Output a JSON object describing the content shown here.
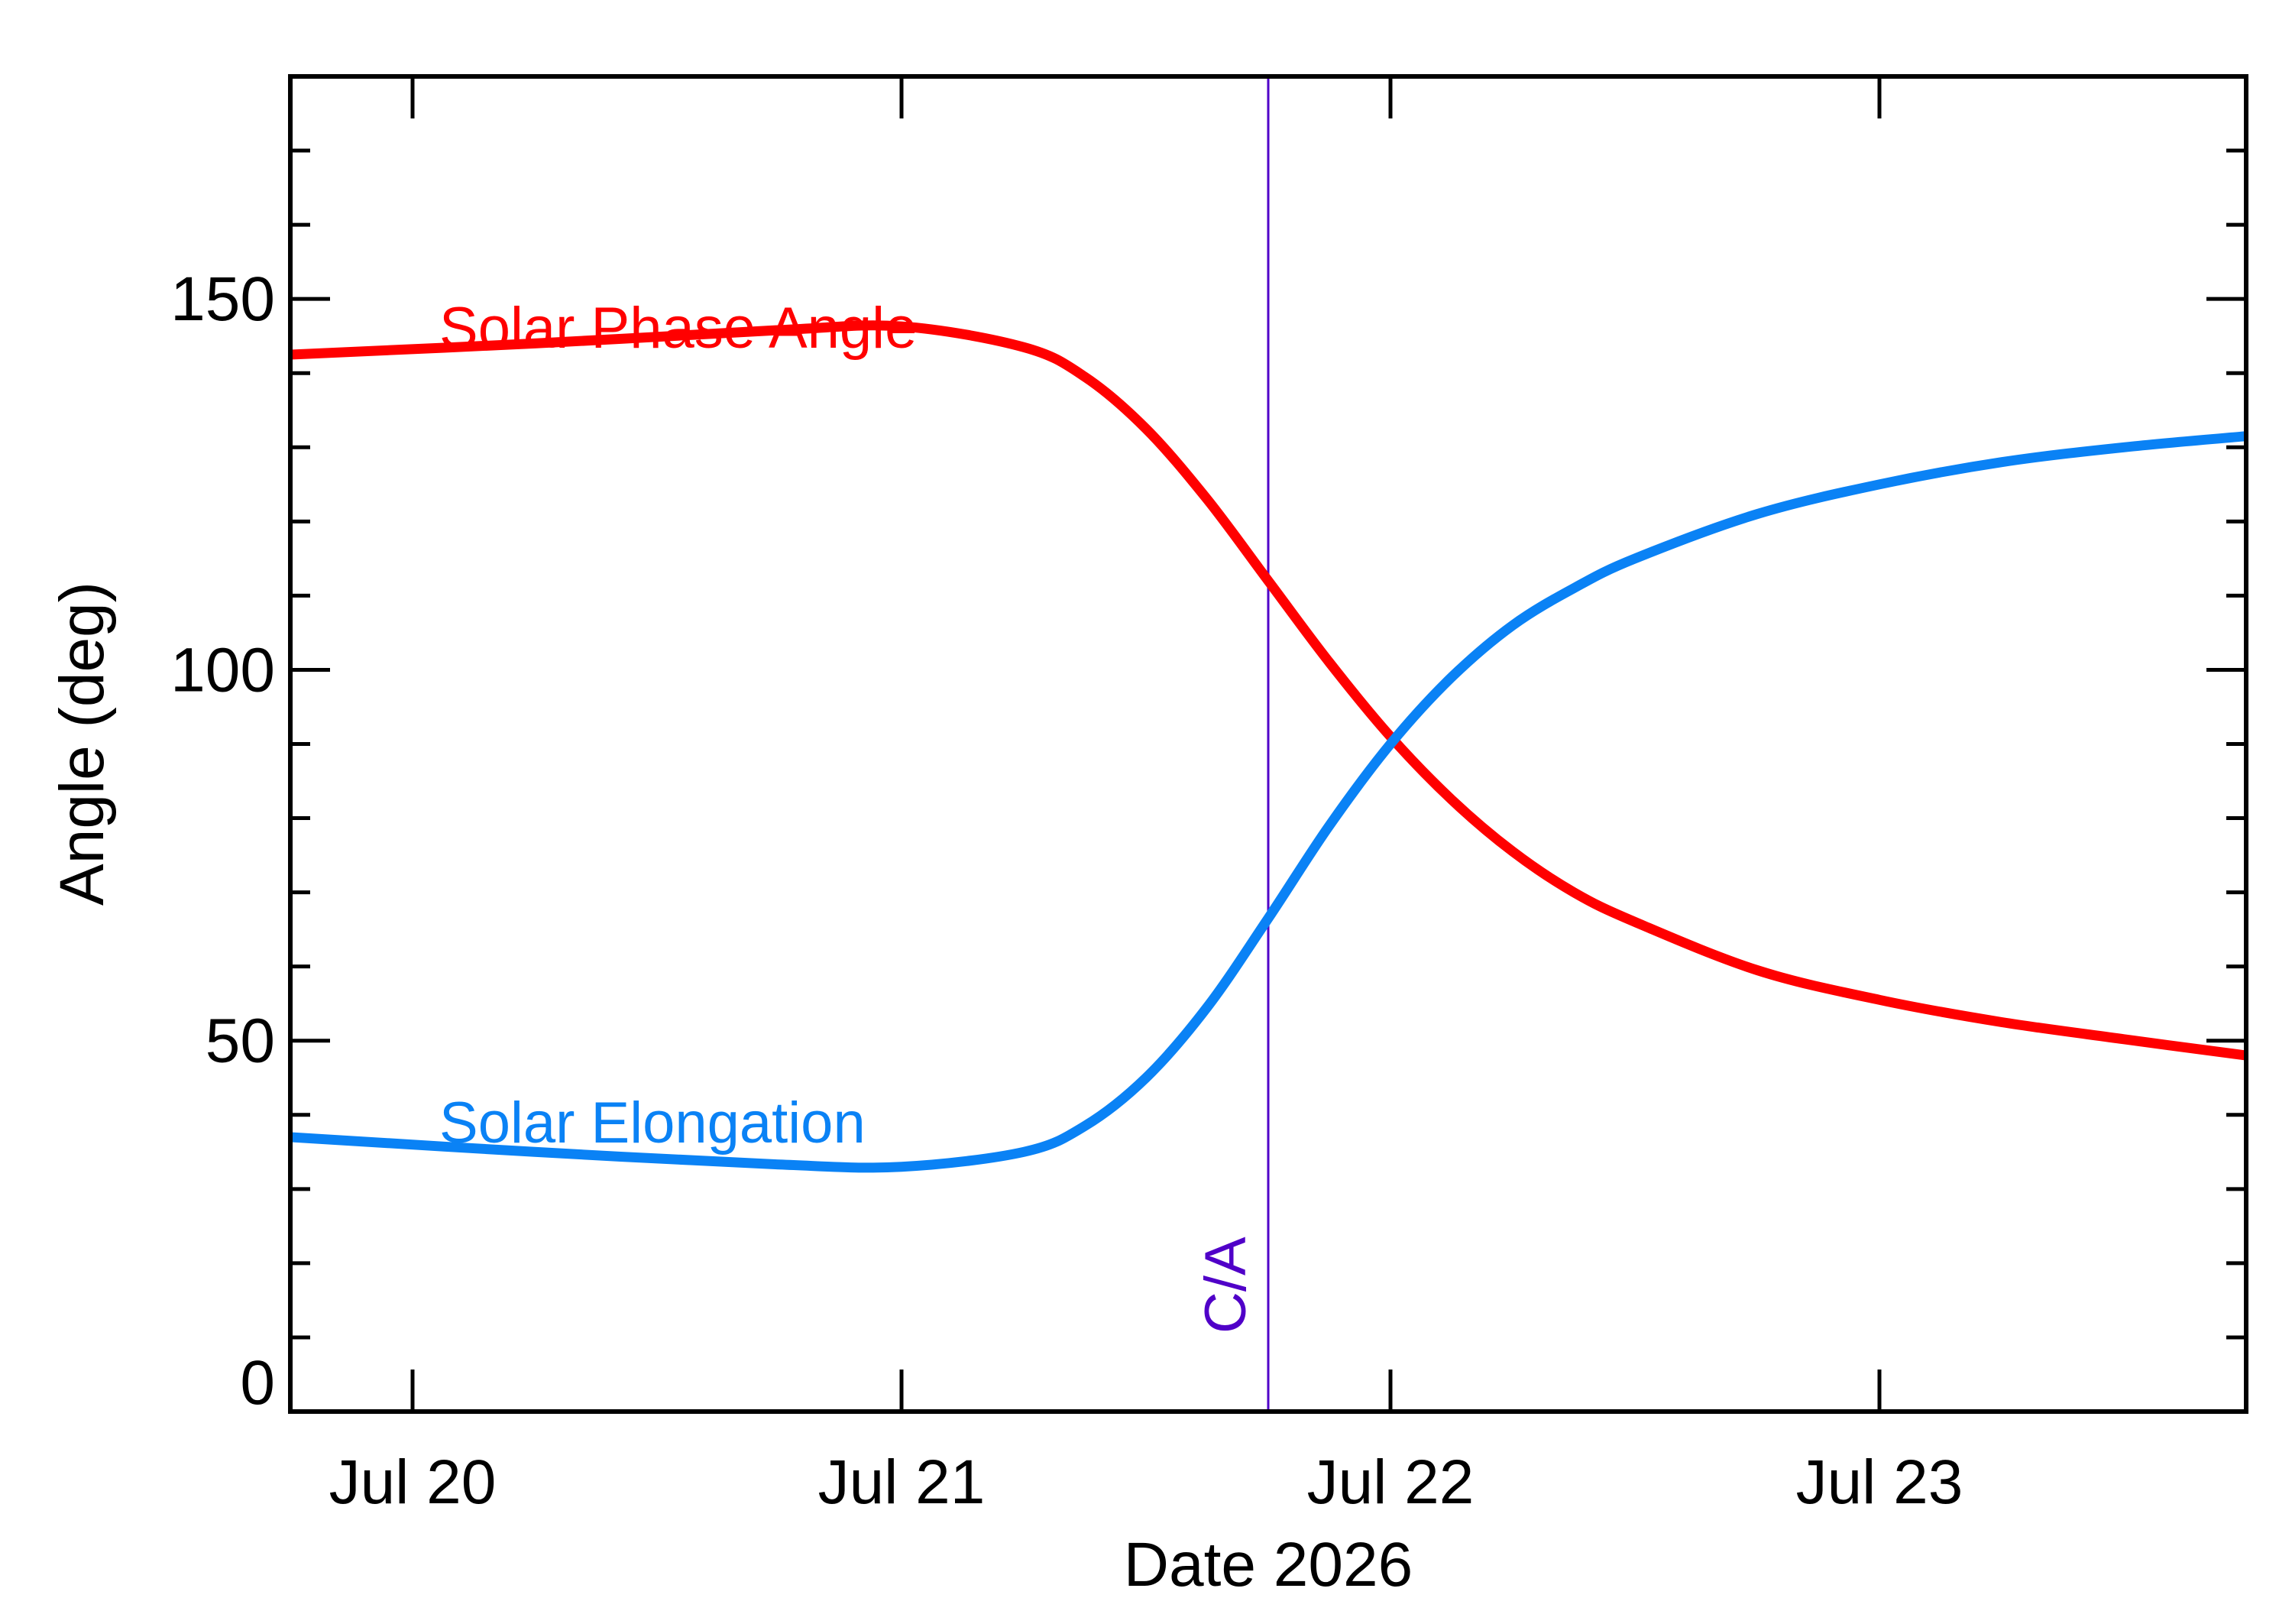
{
  "chart_data": {
    "type": "line",
    "xlabel": "Date 2026",
    "ylabel": "Angle (deg)",
    "x_type": "date",
    "xlim": [
      "2026-07-19 18:00",
      "2026-07-23 18:00"
    ],
    "ylim": [
      0,
      180
    ],
    "x_ticks": [
      {
        "label": "Jul 20",
        "value": "2026-07-20 00:00"
      },
      {
        "label": "Jul 21",
        "value": "2026-07-21 00:00"
      },
      {
        "label": "Jul 22",
        "value": "2026-07-22 00:00"
      },
      {
        "label": "Jul 23",
        "value": "2026-07-23 00:00"
      }
    ],
    "y_ticks": [
      0,
      50,
      100,
      150
    ],
    "y_minor_step": 10,
    "grid": false,
    "legend": "inline labels",
    "series": [
      {
        "name": "Solar Phase Angle",
        "color": "#ff0000",
        "x": [
          "2026-07-19 18:00",
          "2026-07-20 06:00",
          "2026-07-20 18:00",
          "2026-07-21 00:00",
          "2026-07-21 06:00",
          "2026-07-21 09:00",
          "2026-07-21 12:00",
          "2026-07-21 15:00",
          "2026-07-21 18:00",
          "2026-07-21 21:00",
          "2026-07-22 00:00",
          "2026-07-22 03:00",
          "2026-07-22 06:00",
          "2026-07-22 09:00",
          "2026-07-22 12:00",
          "2026-07-22 18:00",
          "2026-07-23 00:00",
          "2026-07-23 06:00",
          "2026-07-23 12:00",
          "2026-07-23 18:00"
        ],
        "y": [
          142.5,
          144.0,
          145.8,
          146.3,
          143.5,
          139.5,
          132.5,
          123.0,
          112.0,
          101.0,
          91.0,
          82.5,
          75.5,
          70.0,
          66.0,
          59.5,
          55.5,
          52.5,
          50.2,
          48.0
        ]
      },
      {
        "name": "Solar Elongation",
        "color": "#0a82f5",
        "x": [
          "2026-07-19 18:00",
          "2026-07-20 06:00",
          "2026-07-20 18:00",
          "2026-07-21 00:00",
          "2026-07-21 06:00",
          "2026-07-21 09:00",
          "2026-07-21 12:00",
          "2026-07-21 15:00",
          "2026-07-21 18:00",
          "2026-07-21 21:00",
          "2026-07-22 00:00",
          "2026-07-22 03:00",
          "2026-07-22 06:00",
          "2026-07-22 09:00",
          "2026-07-22 12:00",
          "2026-07-22 18:00",
          "2026-07-23 00:00",
          "2026-07-23 06:00",
          "2026-07-23 12:00",
          "2026-07-23 18:00"
        ],
        "y": [
          37.0,
          35.0,
          33.3,
          33.0,
          35.0,
          38.5,
          45.0,
          54.5,
          66.5,
          79.0,
          90.0,
          99.0,
          106.0,
          111.0,
          115.0,
          121.0,
          125.0,
          128.0,
          130.0,
          131.5
        ]
      }
    ],
    "annotations": [
      {
        "label": "C/A",
        "x": "2026-07-21 18:00",
        "color": "#5000c8"
      }
    ]
  }
}
